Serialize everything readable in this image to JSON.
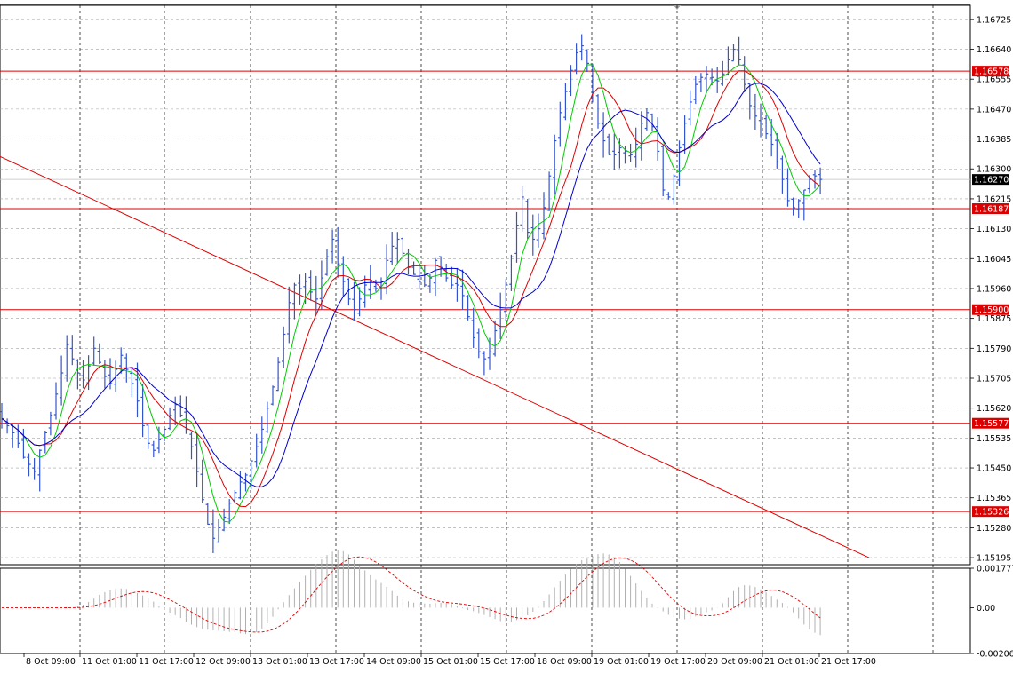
{
  "chart_data": {
    "type": "candlestick",
    "symbol_note": "",
    "main_panel": {
      "y_ticks": [
        "1.16725",
        "1.16640",
        "1.16555",
        "1.16470",
        "1.16385",
        "1.16300",
        "1.16215",
        "1.16130",
        "1.16045",
        "1.15960",
        "1.15875",
        "1.15790",
        "1.15705",
        "1.15620",
        "1.15535",
        "1.15450",
        "1.15365",
        "1.15280",
        "1.15195"
      ],
      "ylim": [
        1.15175,
        1.16765
      ],
      "current_price": "1.16270",
      "horizontal_levels": [
        {
          "label": "1.16578",
          "value": 1.16578
        },
        {
          "label": "1.16187",
          "value": 1.16187
        },
        {
          "label": "1.15900",
          "value": 1.159
        },
        {
          "label": "1.15577",
          "value": 1.15577
        },
        {
          "label": "1.15326",
          "value": 1.15326
        }
      ],
      "trendline": {
        "from": {
          "bar": 0,
          "price": 1.16335
        },
        "to": {
          "bar": 163,
          "price": 1.15195
        }
      },
      "candles_close": [
        1.1559,
        1.1557,
        1.1555,
        1.1552,
        1.1548,
        1.1546,
        1.1544,
        1.155,
        1.1555,
        1.156,
        1.1566,
        1.1572,
        1.158,
        1.1576,
        1.1572,
        1.157,
        1.1574,
        1.1579,
        1.1575,
        1.1571,
        1.1569,
        1.1573,
        1.1577,
        1.1573,
        1.1569,
        1.1564,
        1.1557,
        1.1552,
        1.155,
        1.1553,
        1.1556,
        1.156,
        1.1563,
        1.156,
        1.1556,
        1.1551,
        1.1544,
        1.1536,
        1.1529,
        1.1525,
        1.1528,
        1.1531,
        1.1535,
        1.1538,
        1.1541,
        1.1543,
        1.1547,
        1.1551,
        1.1556,
        1.1562,
        1.1568,
        1.1575,
        1.1583,
        1.1592,
        1.1597,
        1.1596,
        1.1598,
        1.1595,
        1.1593,
        1.1599,
        1.1605,
        1.161,
        1.1603,
        1.1598,
        1.1593,
        1.159,
        1.1593,
        1.1597,
        1.1598,
        1.1596,
        1.1598,
        1.1604,
        1.1608,
        1.161,
        1.1606,
        1.1602,
        1.16,
        1.1598,
        1.1597,
        1.1599,
        1.1604,
        1.1602,
        1.1599,
        1.1597,
        1.1597,
        1.1594,
        1.1588,
        1.1582,
        1.1578,
        1.1576,
        1.1578,
        1.1584,
        1.159,
        1.1597,
        1.1605,
        1.1614,
        1.1622,
        1.1612,
        1.161,
        1.1613,
        1.1619,
        1.1628,
        1.1638,
        1.1646,
        1.1652,
        1.1658,
        1.1663,
        1.1665,
        1.166,
        1.1652,
        1.1643,
        1.1638,
        1.1634,
        1.1634,
        1.1636,
        1.1635,
        1.1634,
        1.1637,
        1.1643,
        1.1646,
        1.1642,
        1.1635,
        1.1624,
        1.1622,
        1.1628,
        1.1636,
        1.1643,
        1.1649,
        1.1654,
        1.1656,
        1.1657,
        1.1656,
        1.1655,
        1.1657,
        1.1661,
        1.1664,
        1.1661,
        1.1654,
        1.1648,
        1.1645,
        1.1643,
        1.164,
        1.1637,
        1.1632,
        1.1627,
        1.1621,
        1.1619,
        1.1621,
        1.1624,
        1.1627,
        1.1628,
        1.1627
      ]
    },
    "oscillator_panel": {
      "y_ticks": [
        "0.001777",
        "0.00",
        "-0.002064"
      ],
      "ylim": [
        -0.002064,
        0.001777
      ]
    },
    "x_ticks": [
      "8 Oct 09:00",
      "11 Oct 01:00",
      "11 Oct 17:00",
      "12 Oct 09:00",
      "13 Oct 01:00",
      "13 Oct 17:00",
      "14 Oct 09:00",
      "15 Oct 01:00",
      "15 Oct 17:00",
      "18 Oct 09:00",
      "19 Oct 01:00",
      "19 Oct 17:00",
      "20 Oct 09:00",
      "21 Oct 01:00",
      "21 Oct 17:00"
    ],
    "colors": {
      "bull": "#3355cc",
      "bear": "#3355cc",
      "ma_fast": "#00cc00",
      "ma_mid": "#dd0000",
      "ma_slow": "#0000cc",
      "level": "#dd0000",
      "grid": "#a0a0a0",
      "label_bg": "#dd0000",
      "current_bg": "#000000"
    }
  }
}
